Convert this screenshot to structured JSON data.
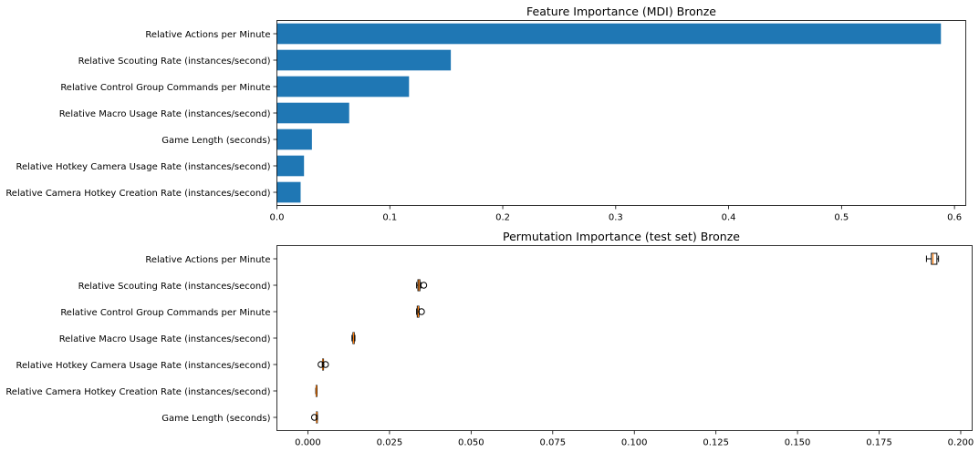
{
  "chart_data": [
    {
      "type": "bar",
      "orientation": "horizontal",
      "title": "Feature Importance (MDI) Bronze",
      "xlabel": "",
      "ylabel": "",
      "xlim": [
        0,
        0.61
      ],
      "xticks": [
        "0.0",
        "0.1",
        "0.2",
        "0.3",
        "0.4",
        "0.5",
        "0.6"
      ],
      "bar_color": "#1f77b4",
      "grid": false,
      "categories": [
        "Relative Actions per Minute",
        "Relative Scouting Rate (instances/second)",
        "Relative Control Group Commands per Minute",
        "Relative Macro Usage Rate (instances/second)",
        "Game Length (seconds)",
        "Relative Hotkey Camera Usage Rate (instances/second)",
        "Relative Camera Hotkey Creation Rate (instances/second)"
      ],
      "values": [
        0.588,
        0.154,
        0.117,
        0.064,
        0.031,
        0.024,
        0.021
      ]
    },
    {
      "type": "boxplot",
      "orientation": "horizontal",
      "title": "Permutation Importance (test set) Bronze",
      "xlabel": "",
      "ylabel": "",
      "xlim": [
        -0.0095,
        0.2035
      ],
      "xticks": [
        "0.000",
        "0.025",
        "0.050",
        "0.075",
        "0.100",
        "0.125",
        "0.150",
        "0.175",
        "0.200"
      ],
      "median_color": "#ff7f0e",
      "grid": false,
      "categories": [
        "Relative Actions per Minute",
        "Relative Scouting Rate (instances/second)",
        "Relative Control Group Commands per Minute",
        "Relative Macro Usage Rate (instances/second)",
        "Relative Hotkey Camera Usage Rate (instances/second)",
        "Relative Camera Hotkey Creation Rate (instances/second)",
        "Game Length (seconds)"
      ],
      "boxes": [
        {
          "whislo": 0.1895,
          "q1": 0.191,
          "med": 0.1915,
          "q3": 0.1927,
          "whishi": 0.1932,
          "fliers": []
        },
        {
          "whislo": 0.0333,
          "q1": 0.0337,
          "med": 0.034,
          "q3": 0.0343,
          "whishi": 0.0346,
          "fliers": [
            0.0355
          ]
        },
        {
          "whislo": 0.0333,
          "q1": 0.0335,
          "med": 0.0338,
          "q3": 0.034,
          "whishi": 0.0341,
          "fliers": [
            0.0348
          ]
        },
        {
          "whislo": 0.0135,
          "q1": 0.0138,
          "med": 0.014,
          "q3": 0.0142,
          "whishi": 0.0144,
          "fliers": []
        },
        {
          "whislo": 0.0044,
          "q1": 0.0045,
          "med": 0.0046,
          "q3": 0.0047,
          "whishi": 0.0048,
          "fliers": [
            0.004,
            0.0054
          ]
        },
        {
          "whislo": 0.0024,
          "q1": 0.0025,
          "med": 0.0026,
          "q3": 0.0027,
          "whishi": 0.0028,
          "fliers": []
        },
        {
          "whislo": 0.0025,
          "q1": 0.0026,
          "med": 0.0027,
          "q3": 0.0028,
          "whishi": 0.0029,
          "fliers": [
            0.002
          ]
        }
      ]
    }
  ]
}
